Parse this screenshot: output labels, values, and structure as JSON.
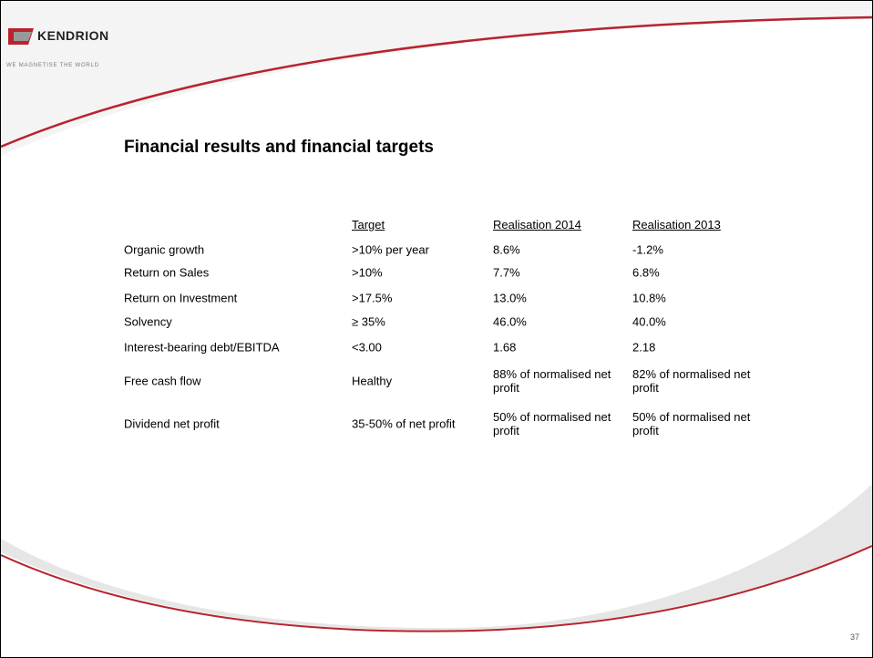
{
  "logo": {
    "brand": "KENDRION",
    "tagline": "WE MAGNETISE THE WORLD"
  },
  "title": "Financial results and financial targets",
  "table": {
    "headers": [
      "Target",
      "Realisation 2014",
      "Realisation 2013"
    ],
    "rows": [
      [
        "Organic growth",
        ">10% per year",
        "8.6%",
        "-1.2%"
      ],
      [
        "Return on Sales",
        ">10%",
        "7.7%",
        "6.8%"
      ],
      [
        "Return on Investment",
        ">17.5%",
        "13.0%",
        "10.8%"
      ],
      [
        "Solvency",
        "≥ 35%",
        "46.0%",
        "40.0%"
      ],
      [
        "Interest-bearing debt/EBITDA",
        "<3.00",
        "1.68",
        "2.18"
      ],
      [
        "Free cash flow",
        "Healthy",
        "88% of normalised net profit",
        "82% of normalised net profit"
      ],
      [
        "Dividend net profit",
        "35-50% of net profit",
        "50% of normalised net profit",
        "50% of normalised net profit"
      ]
    ]
  },
  "page_number": "37"
}
